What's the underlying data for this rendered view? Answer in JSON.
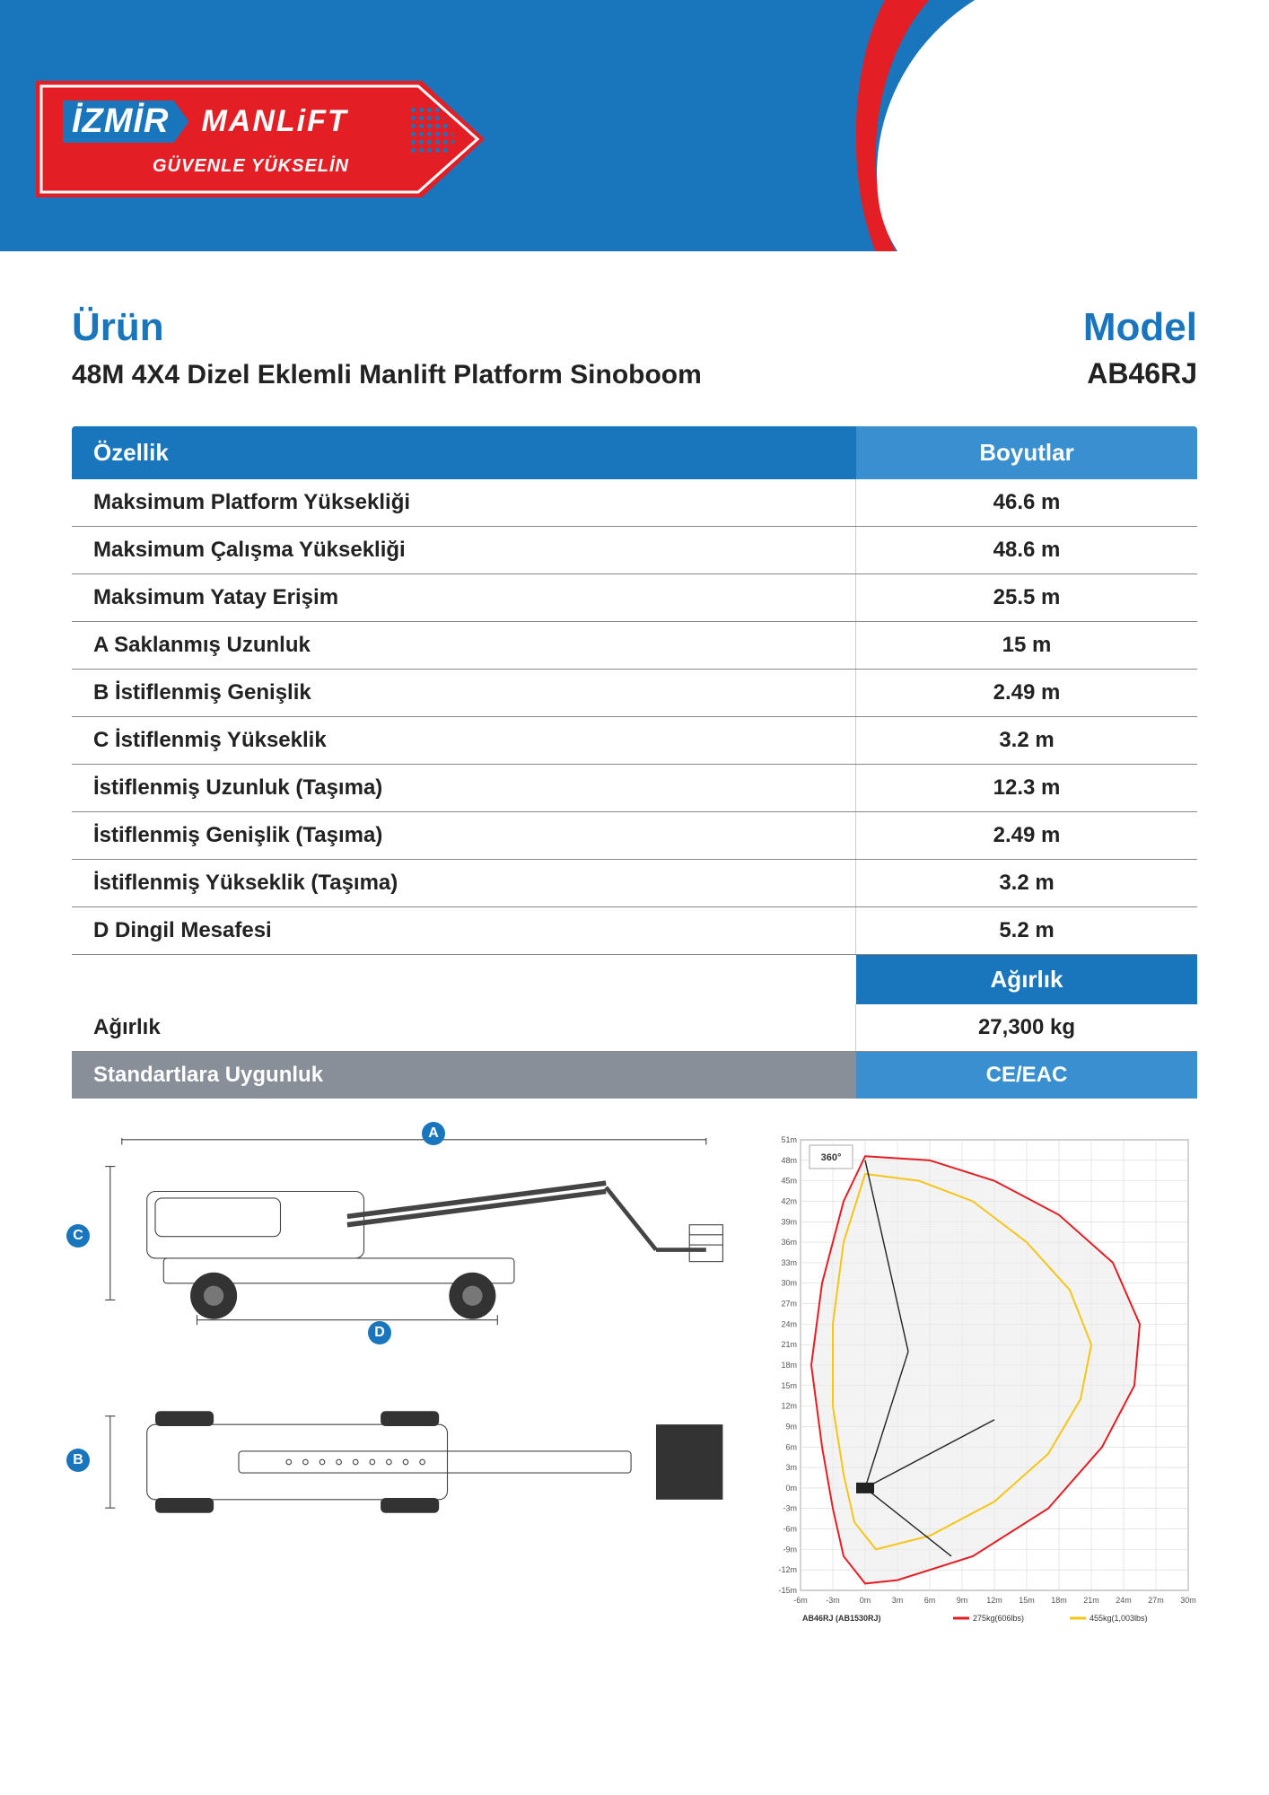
{
  "colors": {
    "brand_blue": "#1a76bc",
    "brand_blue_light": "#3a8fd0",
    "brand_red": "#e31e24",
    "gray_row": "#888f98",
    "text": "#222222",
    "white": "#ffffff",
    "rule": "#888888"
  },
  "logo": {
    "word1": "İZMİR",
    "word2": "MANLiFT",
    "slogan": "GÜVENLE YÜKSELİN"
  },
  "header": {
    "left_title": "Ürün",
    "right_title": "Model",
    "product_name": "48M 4X4 Dizel Eklemli Manlift Platform Sinoboom",
    "model_code": "AB46RJ"
  },
  "table": {
    "head_left": "Özellik",
    "head_right": "Boyutlar",
    "rows": [
      {
        "label": "Maksimum Platform Yüksekliği",
        "value": "46.6 m"
      },
      {
        "label": "Maksimum Çalışma Yüksekliği",
        "value": "48.6 m"
      },
      {
        "label": "Maksimum Yatay Erişim",
        "value": "25.5 m"
      },
      {
        "label": "A Saklanmış Uzunluk",
        "value": "15 m"
      },
      {
        "label": "B İstiflenmiş Genişlik",
        "value": "2.49 m"
      },
      {
        "label": "C İstiflenmiş Yükseklik",
        "value": "3.2 m"
      },
      {
        "label": "İstiflenmiş Uzunluk (Taşıma)",
        "value": "12.3 m"
      },
      {
        "label": "İstiflenmiş Genişlik (Taşıma)",
        "value": "2.49 m"
      },
      {
        "label": "İstiflenmiş Yükseklik (Taşıma)",
        "value": "3.2 m"
      },
      {
        "label": "D Dingil Mesafesi",
        "value": "5.2 m"
      }
    ],
    "section2_title": "Ağırlık",
    "weight_row": {
      "label": "Ağırlık",
      "value": "27,300 kg"
    },
    "footer_row": {
      "label": "Standartlara Uygunluk",
      "value": "CE/EAC"
    }
  },
  "dimension_badges": {
    "a": "A",
    "b": "B",
    "c": "C",
    "d": "D"
  },
  "reach_chart": {
    "type": "range-envelope",
    "title_label": "360°",
    "model_label": "AB46RJ (AB1530RJ)",
    "x_axis": {
      "label": "m",
      "min": -6,
      "max": 30,
      "tick_step": 3
    },
    "y_axis": {
      "label": "m",
      "min": -15,
      "max": 51,
      "tick_step": 3
    },
    "grid_color": "#d7d7d7",
    "background_color": "#ffffff",
    "series": [
      {
        "name": "275kg(606lbs)",
        "stroke": "#e31e24",
        "fill": "#e9e9e9",
        "fill_opacity": 0.55
      },
      {
        "name": "455kg(1,003lbs)",
        "stroke": "#f5c518",
        "fill": "none"
      }
    ],
    "envelope_outer": [
      [
        0,
        48.6
      ],
      [
        6,
        48
      ],
      [
        12,
        45
      ],
      [
        18,
        40
      ],
      [
        23,
        33
      ],
      [
        25.5,
        24
      ],
      [
        25,
        15
      ],
      [
        22,
        6
      ],
      [
        17,
        -3
      ],
      [
        10,
        -10
      ],
      [
        3,
        -13.5
      ],
      [
        0,
        -14
      ],
      [
        -2,
        -10
      ],
      [
        -3,
        -3
      ],
      [
        -4,
        6
      ],
      [
        -5,
        18
      ],
      [
        -4,
        30
      ],
      [
        -2,
        42
      ],
      [
        0,
        48.6
      ]
    ],
    "envelope_inner": [
      [
        0,
        46
      ],
      [
        5,
        45
      ],
      [
        10,
        42
      ],
      [
        15,
        36
      ],
      [
        19,
        29
      ],
      [
        21,
        21
      ],
      [
        20,
        13
      ],
      [
        17,
        5
      ],
      [
        12,
        -2
      ],
      [
        6,
        -7
      ],
      [
        1,
        -9
      ],
      [
        -1,
        -5
      ],
      [
        -2,
        2
      ],
      [
        -3,
        12
      ],
      [
        -3,
        24
      ],
      [
        -2,
        36
      ],
      [
        0,
        46
      ]
    ],
    "boom_lines": [
      [
        [
          0,
          0
        ],
        [
          4,
          20
        ]
      ],
      [
        [
          4,
          20
        ],
        [
          0,
          48
        ]
      ],
      [
        [
          0,
          0
        ],
        [
          12,
          10
        ]
      ],
      [
        [
          0,
          0
        ],
        [
          8,
          -10
        ]
      ]
    ],
    "fontsize_axis": 9,
    "fontsize_legend": 9
  }
}
